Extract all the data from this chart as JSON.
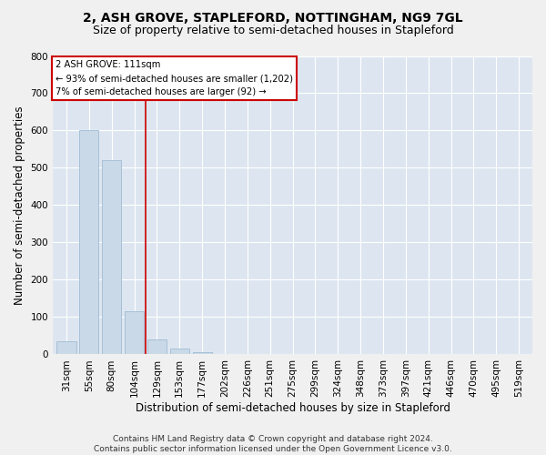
{
  "title": "2, ASH GROVE, STAPLEFORD, NOTTINGHAM, NG9 7GL",
  "subtitle": "Size of property relative to semi-detached houses in Stapleford",
  "xlabel": "Distribution of semi-detached houses by size in Stapleford",
  "ylabel": "Number of semi-detached properties",
  "categories": [
    "31sqm",
    "55sqm",
    "80sqm",
    "104sqm",
    "129sqm",
    "153sqm",
    "177sqm",
    "202sqm",
    "226sqm",
    "251sqm",
    "275sqm",
    "299sqm",
    "324sqm",
    "348sqm",
    "373sqm",
    "397sqm",
    "421sqm",
    "446sqm",
    "470sqm",
    "495sqm",
    "519sqm"
  ],
  "values": [
    35,
    600,
    520,
    115,
    40,
    15,
    5,
    0,
    0,
    0,
    0,
    0,
    0,
    0,
    0,
    0,
    0,
    0,
    0,
    0,
    0
  ],
  "bar_color": "#c9d9e8",
  "bar_edge_color": "#a0bcd4",
  "subject_label": "2 ASH GROVE: 111sqm",
  "annotation_line1": "← 93% of semi-detached houses are smaller (1,202)",
  "annotation_line2": "7% of semi-detached houses are larger (92) →",
  "annotation_box_color": "#ffffff",
  "annotation_box_edge": "#cc0000",
  "red_line_color": "#cc0000",
  "ylim": [
    0,
    800
  ],
  "yticks": [
    0,
    100,
    200,
    300,
    400,
    500,
    600,
    700,
    800
  ],
  "footer1": "Contains HM Land Registry data © Crown copyright and database right 2024.",
  "footer2": "Contains public sector information licensed under the Open Government Licence v3.0.",
  "fig_bg_color": "#f0f0f0",
  "plot_bg_color": "#dde6f0",
  "title_fontsize": 10,
  "subtitle_fontsize": 9,
  "tick_fontsize": 7.5,
  "label_fontsize": 8.5,
  "footer_fontsize": 6.5
}
